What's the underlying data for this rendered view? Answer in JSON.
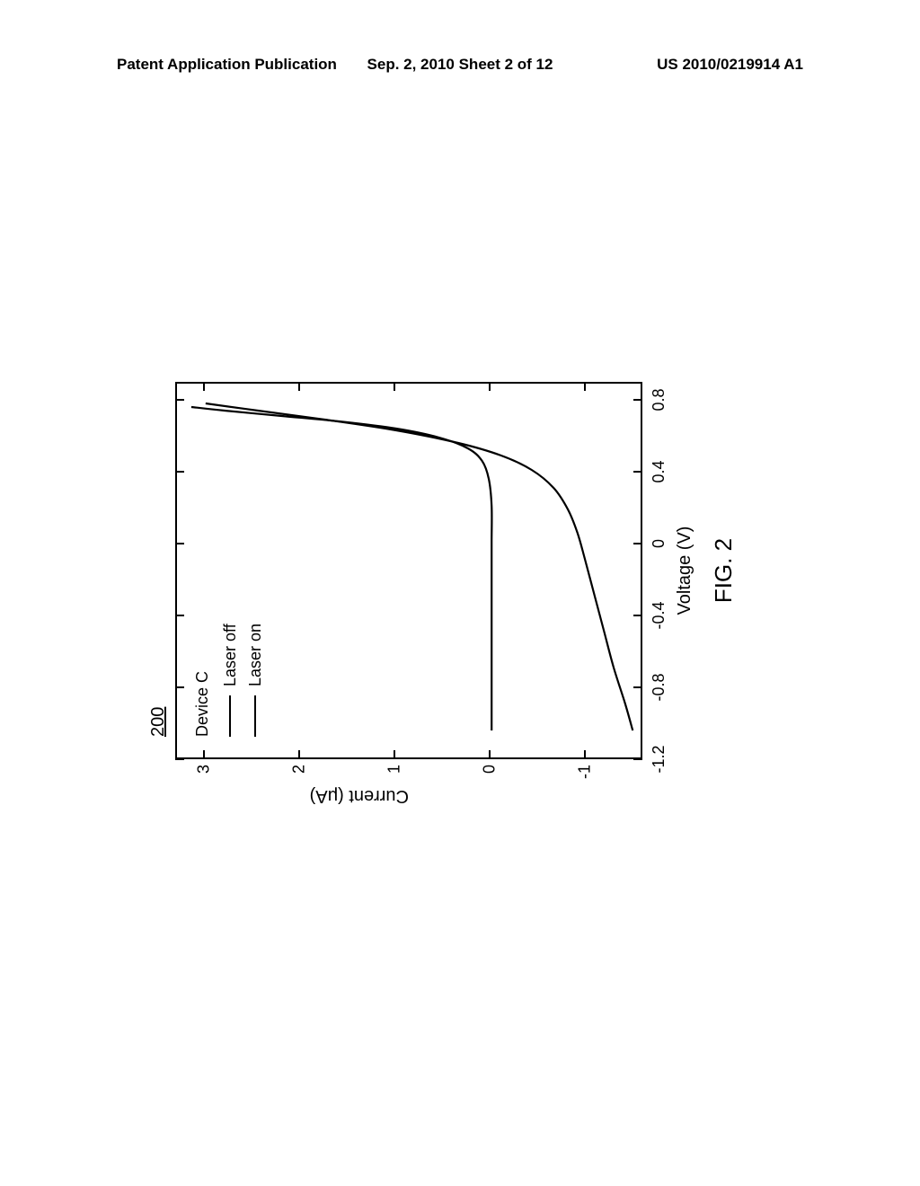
{
  "header": {
    "left": "Patent Application Publication",
    "center": "Sep. 2, 2010  Sheet 2 of 12",
    "right": "US 2010/0219914 A1"
  },
  "figure": {
    "reference_number": "200",
    "caption": "FIG. 2",
    "x_axis": {
      "label": "Voltage (V)",
      "min": -1.2,
      "max": 0.9,
      "ticks": [
        -1.2,
        -0.8,
        -0.4,
        0,
        0.4,
        0.8
      ],
      "label_fontsize": 20,
      "tick_fontsize": 18
    },
    "y_axis": {
      "label": "Current (μA)",
      "min": -1.6,
      "max": 3.3,
      "ticks": [
        -1,
        0,
        1,
        2,
        3
      ],
      "label_fontsize": 20,
      "tick_fontsize": 18
    },
    "legend": {
      "title": "Device C",
      "items": [
        {
          "label": "Laser off",
          "color": "#000000",
          "line_width": 2
        },
        {
          "label": "Laser on",
          "color": "#000000",
          "line_width": 2
        }
      ]
    },
    "series": [
      {
        "name": "Laser off",
        "color": "#000000",
        "line_width": 2.2,
        "points": [
          [
            -1.05,
            0.0
          ],
          [
            -0.8,
            0.0
          ],
          [
            -0.5,
            0.0
          ],
          [
            -0.2,
            0.0
          ],
          [
            0.0,
            0.0
          ],
          [
            0.2,
            0.0
          ],
          [
            0.35,
            0.03
          ],
          [
            0.45,
            0.1
          ],
          [
            0.52,
            0.25
          ],
          [
            0.58,
            0.55
          ],
          [
            0.63,
            1.0
          ],
          [
            0.67,
            1.6
          ],
          [
            0.7,
            2.2
          ],
          [
            0.73,
            2.8
          ],
          [
            0.75,
            3.15
          ]
        ]
      },
      {
        "name": "Laser on",
        "color": "#000000",
        "line_width": 2.2,
        "points": [
          [
            -1.05,
            -1.48
          ],
          [
            -0.9,
            -1.4
          ],
          [
            -0.7,
            -1.28
          ],
          [
            -0.5,
            -1.18
          ],
          [
            -0.3,
            -1.08
          ],
          [
            -0.1,
            -0.98
          ],
          [
            0.05,
            -0.9
          ],
          [
            0.18,
            -0.8
          ],
          [
            0.3,
            -0.65
          ],
          [
            0.4,
            -0.42
          ],
          [
            0.48,
            -0.1
          ],
          [
            0.55,
            0.35
          ],
          [
            0.62,
            1.0
          ],
          [
            0.68,
            1.75
          ],
          [
            0.73,
            2.45
          ],
          [
            0.77,
            3.0
          ]
        ]
      }
    ],
    "plot_style": {
      "background_color": "#ffffff",
      "border_color": "#000000",
      "border_width": 2,
      "tick_length": 10,
      "tick_inside": true
    }
  }
}
